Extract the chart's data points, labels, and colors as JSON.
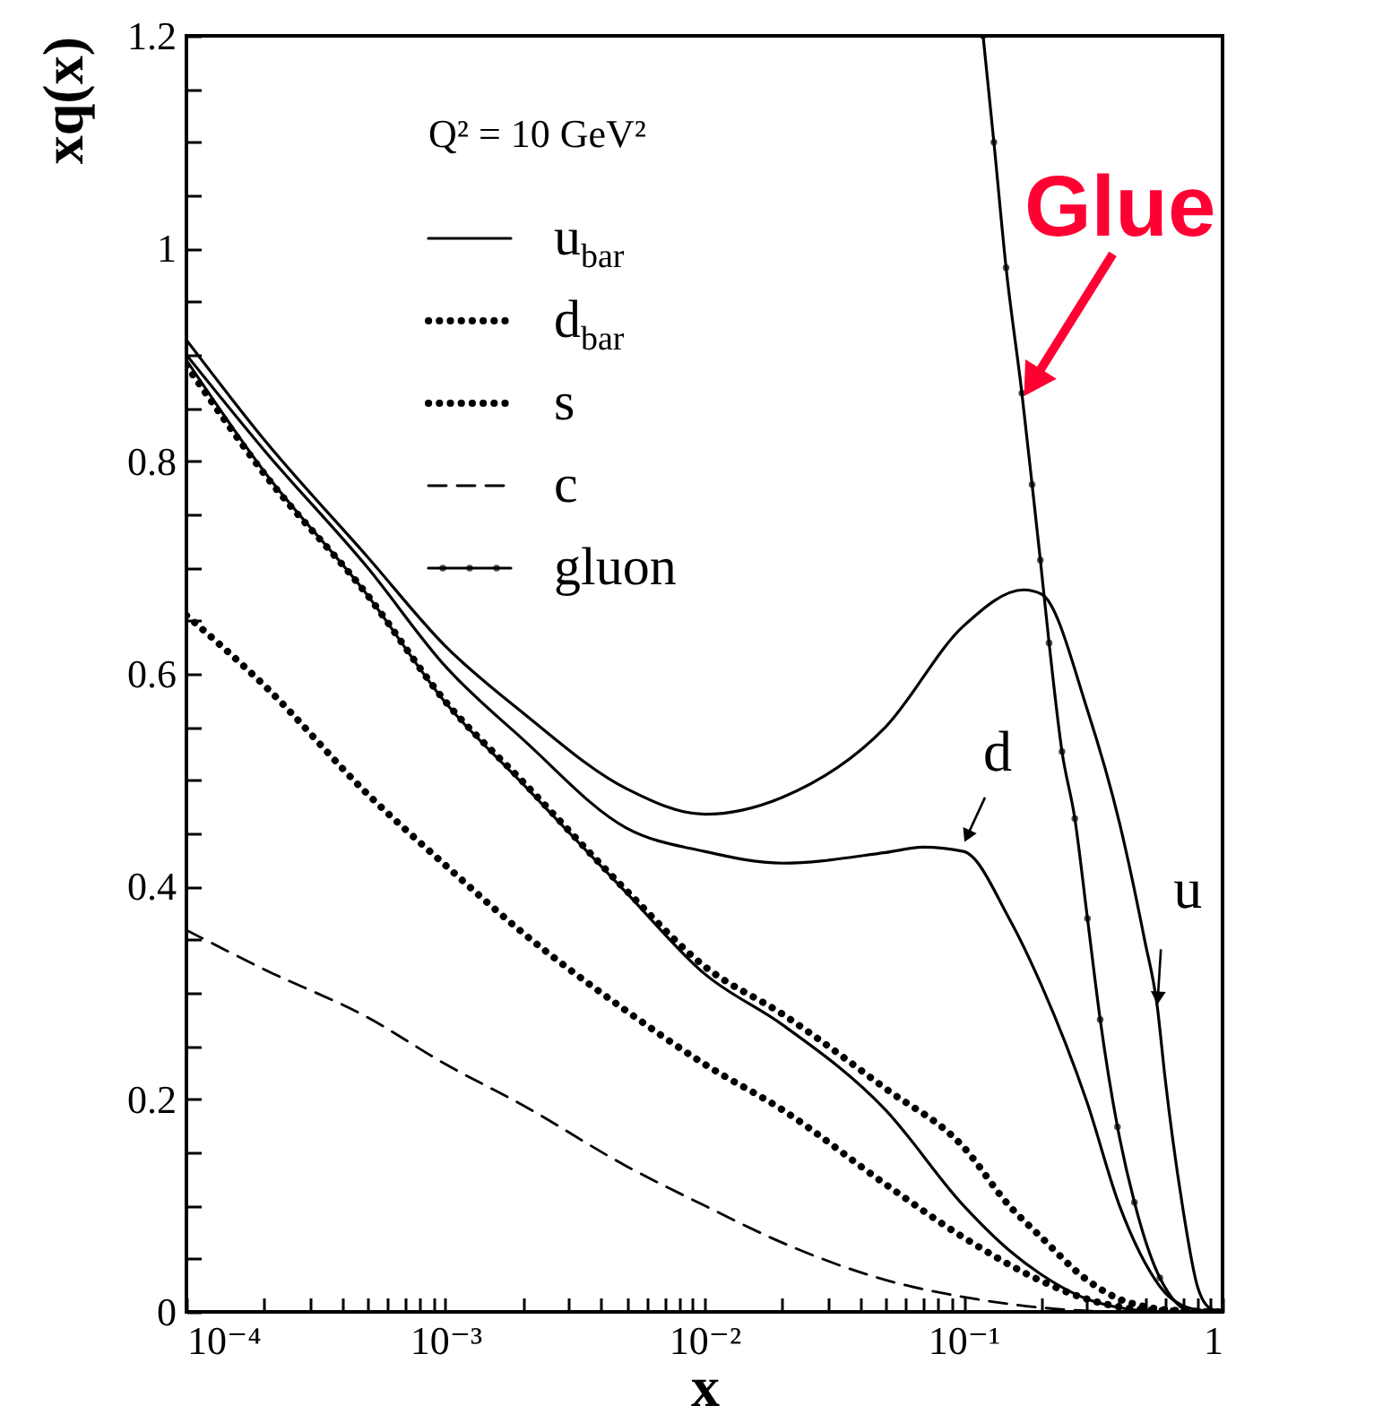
{
  "chart_data": {
    "type": "line",
    "xlabel": "x",
    "ylabel": "xq(x)",
    "legend_title": "Q² = 10 GeV²",
    "legend": "top left",
    "log": "x",
    "xlim": [
      0.0001,
      1
    ],
    "ylim": [
      0,
      1.2
    ],
    "xticks": [
      {
        "value": 0.0001,
        "label": "10⁻⁴"
      },
      {
        "value": 0.0002,
        "label": null
      },
      {
        "value": 0.0003,
        "label": null
      },
      {
        "value": 0.0004,
        "label": null
      },
      {
        "value": 0.0005,
        "label": null
      },
      {
        "value": 0.0006,
        "label": null
      },
      {
        "value": 0.0007,
        "label": null
      },
      {
        "value": 0.0008,
        "label": null
      },
      {
        "value": 0.0009,
        "label": null
      },
      {
        "value": 0.001,
        "label": "10⁻³"
      },
      {
        "value": 0.002,
        "label": null
      },
      {
        "value": 0.003,
        "label": null
      },
      {
        "value": 0.004,
        "label": null
      },
      {
        "value": 0.005,
        "label": null
      },
      {
        "value": 0.006,
        "label": null
      },
      {
        "value": 0.007,
        "label": null
      },
      {
        "value": 0.008,
        "label": null
      },
      {
        "value": 0.009,
        "label": null
      },
      {
        "value": 0.01,
        "label": "10⁻²"
      },
      {
        "value": 0.02,
        "label": null
      },
      {
        "value": 0.03,
        "label": null
      },
      {
        "value": 0.04,
        "label": null
      },
      {
        "value": 0.05,
        "label": null
      },
      {
        "value": 0.06,
        "label": null
      },
      {
        "value": 0.07,
        "label": null
      },
      {
        "value": 0.08,
        "label": null
      },
      {
        "value": 0.09,
        "label": null
      },
      {
        "value": 0.1,
        "label": "10⁻¹"
      },
      {
        "value": 0.2,
        "label": null
      },
      {
        "value": 0.3,
        "label": null
      },
      {
        "value": 0.4,
        "label": null
      },
      {
        "value": 0.5,
        "label": null
      },
      {
        "value": 0.6,
        "label": null
      },
      {
        "value": 0.7,
        "label": null
      },
      {
        "value": 0.8,
        "label": null
      },
      {
        "value": 0.9,
        "label": null
      },
      1
    ],
    "yticks": [
      0,
      {
        "value": 0.05,
        "label": null
      },
      {
        "value": 0.1,
        "label": null
      },
      {
        "value": 0.15,
        "label": null
      },
      0.2,
      {
        "value": 0.25,
        "label": null
      },
      {
        "value": 0.3,
        "label": null
      },
      {
        "value": 0.35,
        "label": null
      },
      0.4,
      {
        "value": 0.45,
        "label": null
      },
      {
        "value": 0.5,
        "label": null
      },
      {
        "value": 0.55,
        "label": null
      },
      0.6,
      {
        "value": 0.65,
        "label": null
      },
      {
        "value": 0.7,
        "label": null
      },
      {
        "value": 0.75,
        "label": null
      },
      0.8,
      {
        "value": 0.85,
        "label": null
      },
      {
        "value": 0.9,
        "label": null
      },
      {
        "value": 0.95,
        "label": null
      },
      {
        "value": 1,
        "label": "1"
      },
      {
        "value": 1.05,
        "label": null
      },
      {
        "value": 1.1,
        "label": null
      },
      {
        "value": 1.15,
        "label": null
      },
      1.2
    ],
    "series": [
      {
        "name": "u$_{bar}$",
        "color": "#000000",
        "line_style": "solid",
        "x": [
          0.0001,
          0.0002,
          0.0005,
          0.001,
          0.002,
          0.005,
          0.01,
          0.02,
          0.05,
          0.1,
          0.15,
          0.2,
          0.3,
          0.4,
          0.5,
          0.7,
          1
        ],
        "values": [
          0.895,
          0.79,
          0.674,
          0.573,
          0.496,
          0.394,
          0.318,
          0.27,
          0.19,
          0.1,
          0.058,
          0.035,
          0.012,
          0.004,
          0.001,
          0,
          0
        ]
      },
      {
        "name": "d$_{bar}$",
        "color": "#000000",
        "line_style": "dotted",
        "x": [
          0.0001,
          0.0002,
          0.0005,
          0.001,
          0.002,
          0.005,
          0.01,
          0.02,
          0.05,
          0.1,
          0.15,
          0.2,
          0.3,
          0.4,
          0.5,
          0.7,
          1
        ],
        "values": [
          0.89,
          0.788,
          0.674,
          0.574,
          0.498,
          0.396,
          0.325,
          0.28,
          0.21,
          0.155,
          0.1,
          0.07,
          0.03,
          0.012,
          0.005,
          0.001,
          0
        ]
      },
      {
        "name": "s",
        "color": "#000000",
        "line_style": "dotted",
        "x": [
          0.0001,
          0.0002,
          0.0005,
          0.001,
          0.002,
          0.005,
          0.01,
          0.02,
          0.05,
          0.1,
          0.2,
          0.3,
          0.5,
          1
        ],
        "values": [
          0.655,
          0.589,
          0.487,
          0.42,
          0.356,
          0.283,
          0.233,
          0.19,
          0.12,
          0.07,
          0.029,
          0.012,
          0.002,
          0
        ]
      },
      {
        "name": "c",
        "color": "#000000",
        "line_style": "dashed",
        "x": [
          0.0001,
          0.0002,
          0.0005,
          0.001,
          0.002,
          0.005,
          0.01,
          0.02,
          0.05,
          0.1,
          0.2,
          0.3,
          0.5,
          1
        ],
        "values": [
          0.359,
          0.322,
          0.277,
          0.233,
          0.194,
          0.137,
          0.1,
          0.065,
          0.03,
          0.014,
          0.004,
          0.001,
          0,
          0
        ]
      },
      {
        "name": "gluon",
        "color": "#000000",
        "line_style": "solid",
        "marker": "circle",
        "x": [
          0.119,
          0.131,
          0.146,
          0.168,
          0.184,
          0.198,
          0.214,
          0.24,
          0.269,
          0.301,
          0.337,
          0.393,
          0.457,
          0.573,
          0.774,
          1
        ],
        "values": [
          1.2,
          1.1,
          0.982,
          0.864,
          0.778,
          0.707,
          0.629,
          0.527,
          0.464,
          0.37,
          0.275,
          0.174,
          0.103,
          0.032,
          0,
          0
        ]
      },
      {
        "color": "#000000",
        "line_style": "solid",
        "x": [
          0.0001,
          0.0002,
          0.0005,
          0.001,
          0.002,
          0.005,
          0.01,
          0.02,
          0.05,
          0.1,
          0.171,
          0.2,
          0.3,
          0.4,
          0.5,
          0.56,
          0.6,
          0.7,
          0.8,
          0.9,
          1
        ],
        "values": [
          0.914,
          0.82,
          0.71,
          0.626,
          0.563,
          0.492,
          0.468,
          0.484,
          0.55,
          0.645,
          0.679,
          0.675,
          0.567,
          0.46,
          0.35,
          0.287,
          0.22,
          0.1,
          0.024,
          0.003,
          0
        ]
      },
      {
        "color": "#000000",
        "line_style": "solid",
        "x": [
          0.0001,
          0.0002,
          0.0005,
          0.001,
          0.002,
          0.005,
          0.01,
          0.02,
          0.05,
          0.07,
          0.1,
          0.15,
          0.2,
          0.3,
          0.4,
          0.5,
          0.6,
          0.7,
          0.8,
          1
        ],
        "values": [
          0.9,
          0.81,
          0.7,
          0.607,
          0.538,
          0.455,
          0.433,
          0.422,
          0.432,
          0.437,
          0.433,
          0.37,
          0.307,
          0.197,
          0.1,
          0.047,
          0.018,
          0.006,
          0.002,
          0
        ]
      }
    ],
    "annotations": [
      {
        "text": "Glue",
        "x": 0.17,
        "y": 0.86
      },
      {
        "text": "d",
        "x": 0.1,
        "y": 0.44
      },
      {
        "text": "u",
        "x": 0.56,
        "y": 0.287
      }
    ]
  }
}
